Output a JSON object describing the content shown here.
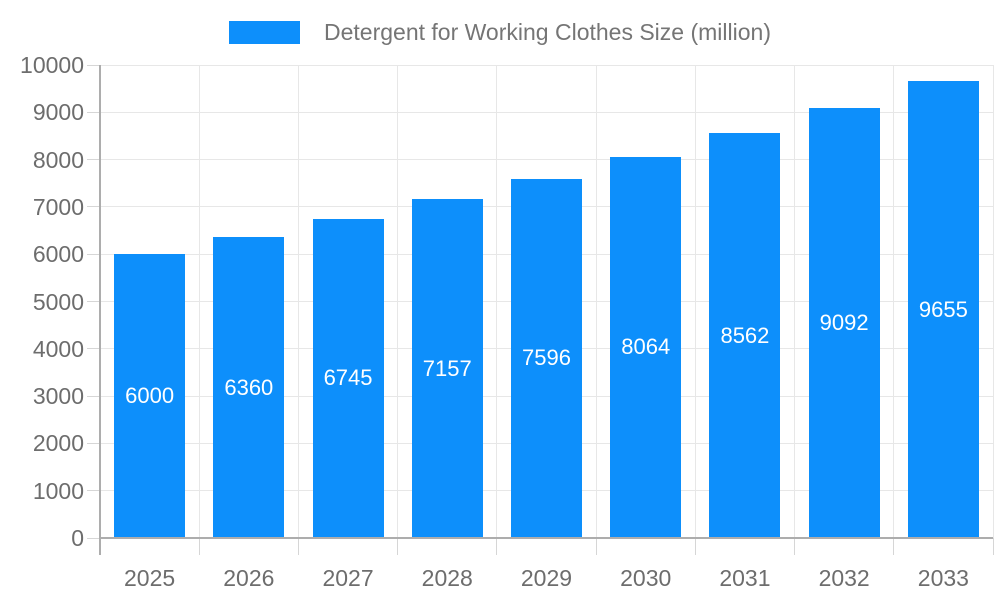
{
  "chart_data": {
    "type": "bar",
    "series_name": "Detergent for Working Clothes Size (million)",
    "categories": [
      "2025",
      "2026",
      "2027",
      "2028",
      "2029",
      "2030",
      "2031",
      "2032",
      "2033"
    ],
    "values": [
      6000,
      6360,
      6745,
      7157,
      7596,
      8064,
      8562,
      9092,
      9655
    ],
    "value_labels": [
      "6000",
      "6360",
      "6745",
      "7157",
      "7596",
      "8064",
      "8562",
      "9092",
      "9655"
    ],
    "y_tick_labels": [
      "0",
      "1000",
      "2000",
      "3000",
      "4000",
      "5000",
      "6000",
      "7000",
      "8000",
      "9000",
      "10000"
    ],
    "ylim": [
      0,
      10000
    ],
    "ytick_step": 1000,
    "grid": true,
    "legend_position": "top",
    "colors": {
      "bar": "#0d8ffb",
      "value_label": "#ffffff",
      "axis_text": "#6d6d6d",
      "legend_text": "#757575",
      "axis_line": "#adadad",
      "grid_line": "#e7e7e7",
      "tick": "#d6d6d6",
      "background": "#ffffff"
    }
  }
}
